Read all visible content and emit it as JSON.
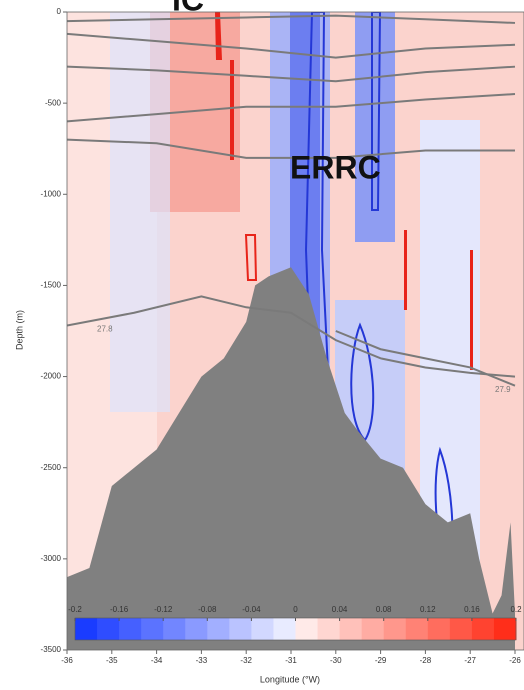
{
  "chart_data": {
    "type": "section",
    "annotations": [
      "ERRC",
      "IC"
    ],
    "ylabel": "Depth (m)",
    "xlabel": "Longitude (°W)",
    "xlim": [
      -36,
      -26
    ],
    "ylim": [
      -3500,
      0
    ],
    "xticks": [
      -36,
      -35,
      -34,
      -33,
      -32,
      -31,
      -30,
      -29,
      -28,
      -27,
      -26
    ],
    "yticks": [
      -3500,
      -3000,
      -2500,
      -2000,
      -1500,
      -1000,
      -500,
      0
    ],
    "bathymetry": {
      "color": "#808080",
      "x": [
        -36,
        -35.5,
        -35,
        -34.5,
        -34,
        -33.5,
        -33,
        -32.5,
        -32,
        -31.8,
        -31.5,
        -31,
        -30.6,
        -30.2,
        -29.8,
        -29.5,
        -29,
        -28.5,
        -28,
        -27.5,
        -27,
        -26.8,
        -26.5,
        -26.3,
        -26.1,
        -26
      ],
      "depth": [
        -3100,
        -3050,
        -2600,
        -2500,
        -2400,
        -2200,
        -2000,
        -1900,
        -1700,
        -1500,
        -1450,
        -1400,
        -1550,
        -1900,
        -2200,
        -2300,
        -2450,
        -2500,
        -2700,
        -2800,
        -2750,
        -3000,
        -3300,
        -3200,
        -2800,
        -3300
      ]
    },
    "contours": [
      {
        "x": [
          -36,
          -34,
          -32,
          -30,
          -28,
          -26
        ],
        "y": [
          -50,
          -40,
          -30,
          -20,
          -40,
          -60
        ]
      },
      {
        "x": [
          -36,
          -34,
          -32,
          -30,
          -28,
          -26
        ],
        "y": [
          -120,
          -160,
          -200,
          -250,
          -200,
          -180
        ]
      },
      {
        "x": [
          -36,
          -34,
          -32,
          -30,
          -28,
          -26
        ],
        "y": [
          -300,
          -320,
          -350,
          -380,
          -330,
          -300
        ]
      },
      {
        "x": [
          -36,
          -34,
          -32,
          -30,
          -28,
          -26
        ],
        "y": [
          -600,
          -560,
          -520,
          -520,
          -480,
          -450
        ]
      },
      {
        "x": [
          -36,
          -34,
          -32,
          -30,
          -28,
          -26
        ],
        "y": [
          -700,
          -720,
          -800,
          -800,
          -760,
          -760
        ]
      },
      {
        "label": "27.8",
        "x": [
          -36,
          -34.5,
          -33,
          -32,
          -31,
          -30,
          -29,
          -28,
          -27,
          -26
        ],
        "y": [
          -1720,
          -1650,
          -1560,
          -1620,
          -1650,
          -1800,
          -1900,
          -1950,
          -1980,
          -2000
        ]
      },
      {
        "label": "27.9",
        "x": [
          -30,
          -29,
          -28,
          -27,
          -26
        ],
        "y": [
          -1750,
          -1850,
          -1900,
          -1950,
          -2050
        ]
      }
    ],
    "colorbar": {
      "range": [
        -0.2,
        0.2
      ],
      "ticks": [
        -0.2,
        -0.16,
        -0.12,
        -0.08,
        -0.04,
        0,
        0.04,
        0.08,
        0.12,
        0.16,
        0.2
      ],
      "colors": [
        "#1a3cff",
        "#2f4dff",
        "#4560ff",
        "#5b73ff",
        "#7286ff",
        "#8a9aff",
        "#a2afff",
        "#bac3ff",
        "#d2d8ff",
        "#e8ebff",
        "#ffeae8",
        "#ffd6d1",
        "#ffc1ba",
        "#ffaca3",
        "#ff978c",
        "#ff8275",
        "#ff6d5e",
        "#ff5847",
        "#ff4330",
        "#ff2e1a"
      ]
    }
  }
}
